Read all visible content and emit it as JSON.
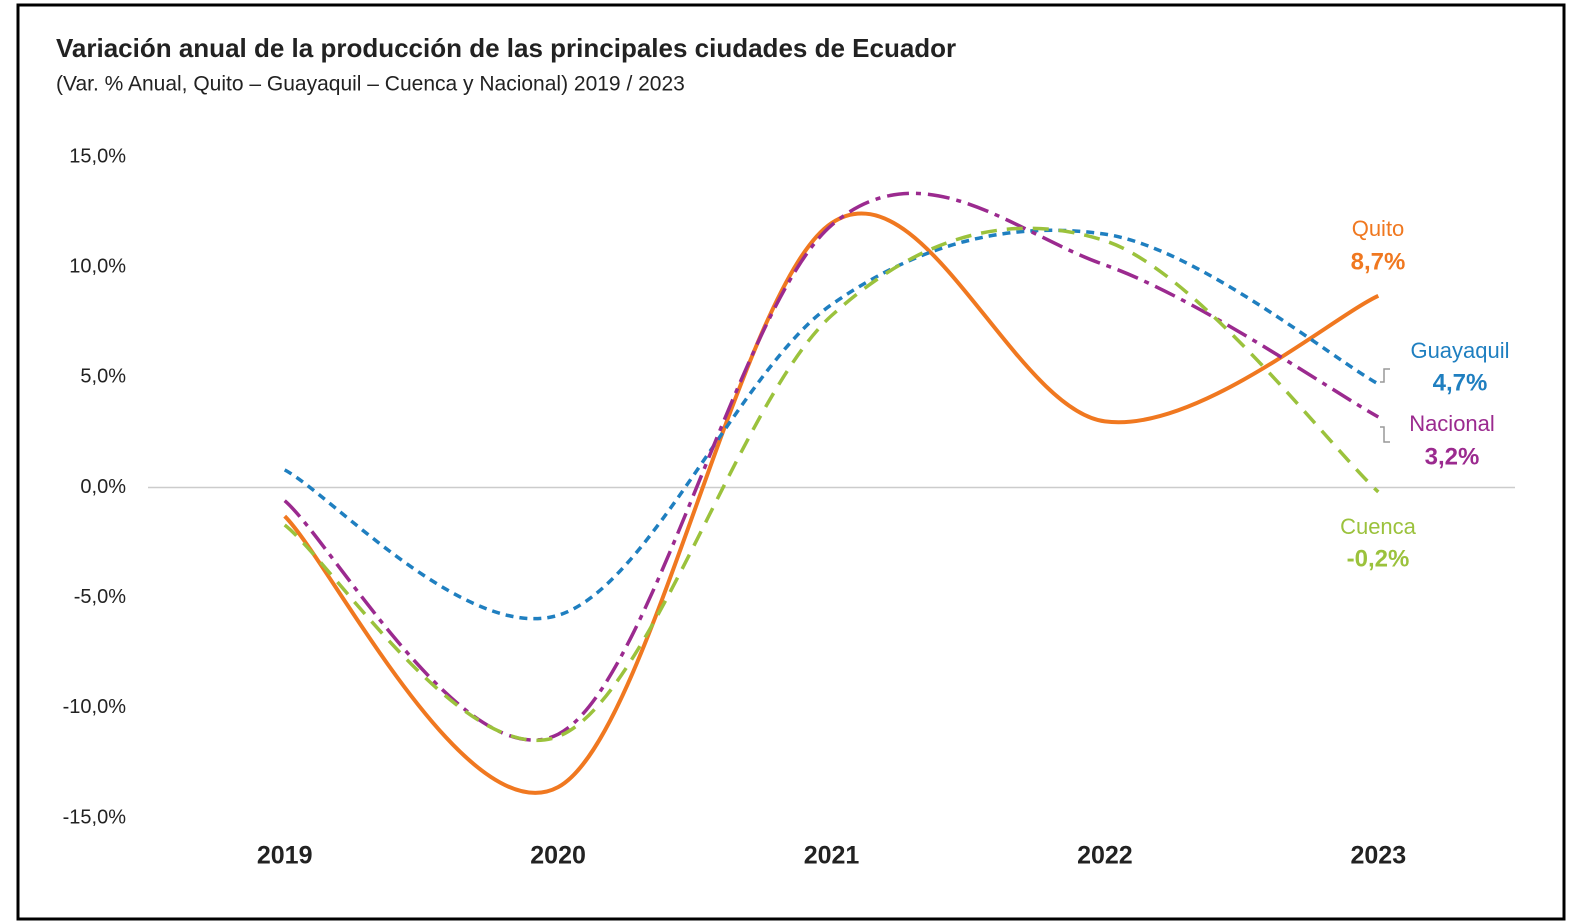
{
  "chart_data": {
    "type": "line",
    "title": "Variación anual de la producción de las principales ciudades de Ecuador",
    "subtitle": "(Var. % Anual, Quito – Guayaquil – Cuenca y Nacional) 2019 / 2023",
    "categories": [
      "2019",
      "2020",
      "2021",
      "2022",
      "2023"
    ],
    "series": [
      {
        "name": "Quito",
        "color": "#f07820",
        "values": [
          -1.3,
          -13.6,
          12.0,
          3.0,
          8.7
        ],
        "value_labels": [
          null,
          null,
          null,
          null,
          "8,7%"
        ]
      },
      {
        "name": "Guayaquil",
        "color": "#1f7fc0",
        "values": [
          0.8,
          -5.8,
          8.3,
          11.5,
          4.7
        ],
        "value_labels": [
          null,
          null,
          null,
          null,
          "4,7%"
        ]
      },
      {
        "name": "Nacional",
        "color": "#9b2a8f",
        "values": [
          -0.6,
          -11.2,
          11.9,
          10.1,
          3.2
        ],
        "value_labels": [
          null,
          null,
          null,
          null,
          "3,2%"
        ]
      },
      {
        "name": "Cuenca",
        "color": "#9bc23c",
        "values": [
          -1.7,
          -11.3,
          7.8,
          11.2,
          -0.2
        ],
        "value_labels": [
          null,
          null,
          null,
          null,
          "-0,2%"
        ]
      }
    ],
    "ylim": [
      -15,
      15
    ],
    "yticks": [
      {
        "value": -15,
        "label": "-15,0%"
      },
      {
        "value": -10,
        "label": "-10,0%"
      },
      {
        "value": -5,
        "label": "-5,0%"
      },
      {
        "value": 0,
        "label": "0,0%"
      },
      {
        "value": 5,
        "label": "5,0%"
      },
      {
        "value": 10,
        "label": "10,0%"
      },
      {
        "value": 15,
        "label": "15,0%"
      }
    ],
    "grid": false
  }
}
